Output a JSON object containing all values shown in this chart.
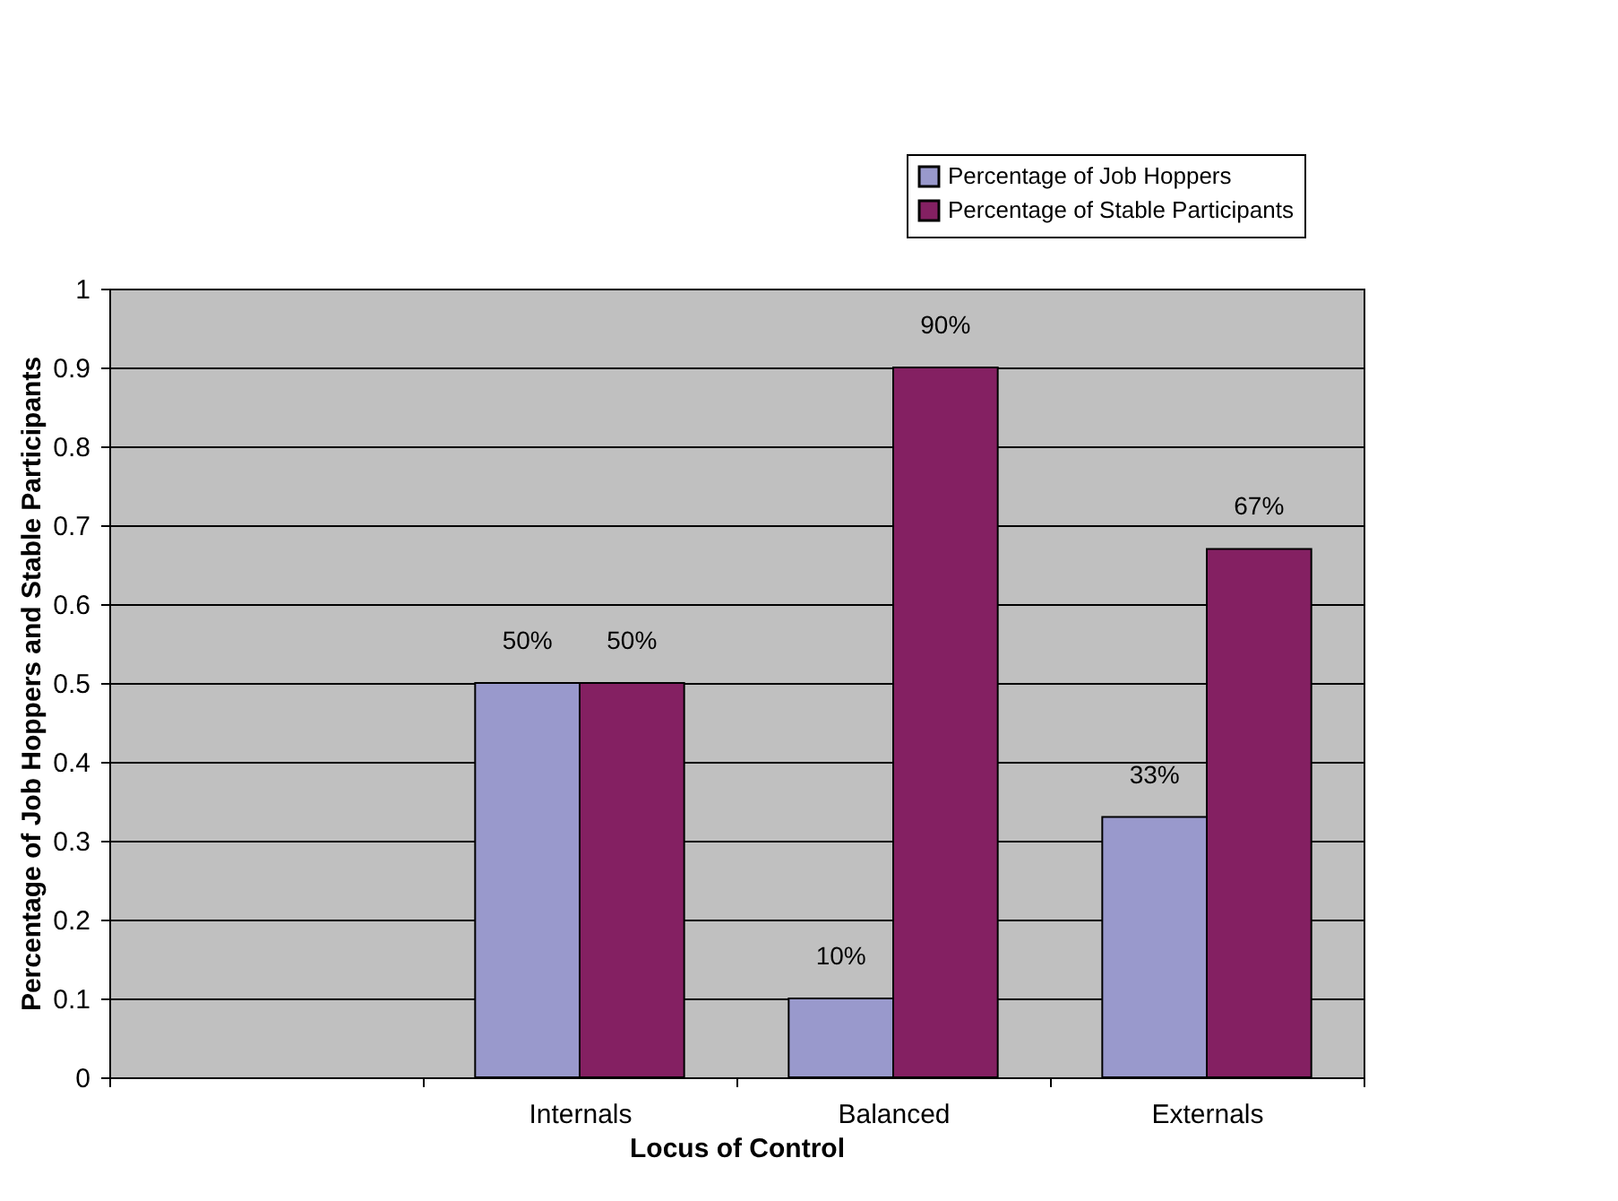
{
  "chart_data": {
    "type": "bar",
    "xlabel": "Locus of Control",
    "ylabel": "Percentage of Job Hoppers and Stable Participants",
    "categories": [
      null,
      "Internals",
      "Balanced",
      "Externals"
    ],
    "series": [
      {
        "name": "Percentage of Job Hoppers",
        "color": "#9999cc",
        "values": [
          null,
          0.5,
          0.1,
          0.33
        ],
        "value_labels": [
          null,
          "50%",
          "10%",
          "33%"
        ]
      },
      {
        "name": "Percentage of Stable Participants",
        "color": "#842062",
        "values": [
          null,
          0.5,
          0.9,
          0.67
        ],
        "value_labels": [
          null,
          "50%",
          "90%",
          "67%"
        ]
      }
    ],
    "ylim": [
      0,
      1
    ],
    "yticks": [
      0,
      0.1,
      0.2,
      0.3,
      0.4,
      0.5,
      0.6,
      0.7,
      0.8,
      0.9,
      1
    ],
    "grid": "y",
    "legend": "top right"
  }
}
